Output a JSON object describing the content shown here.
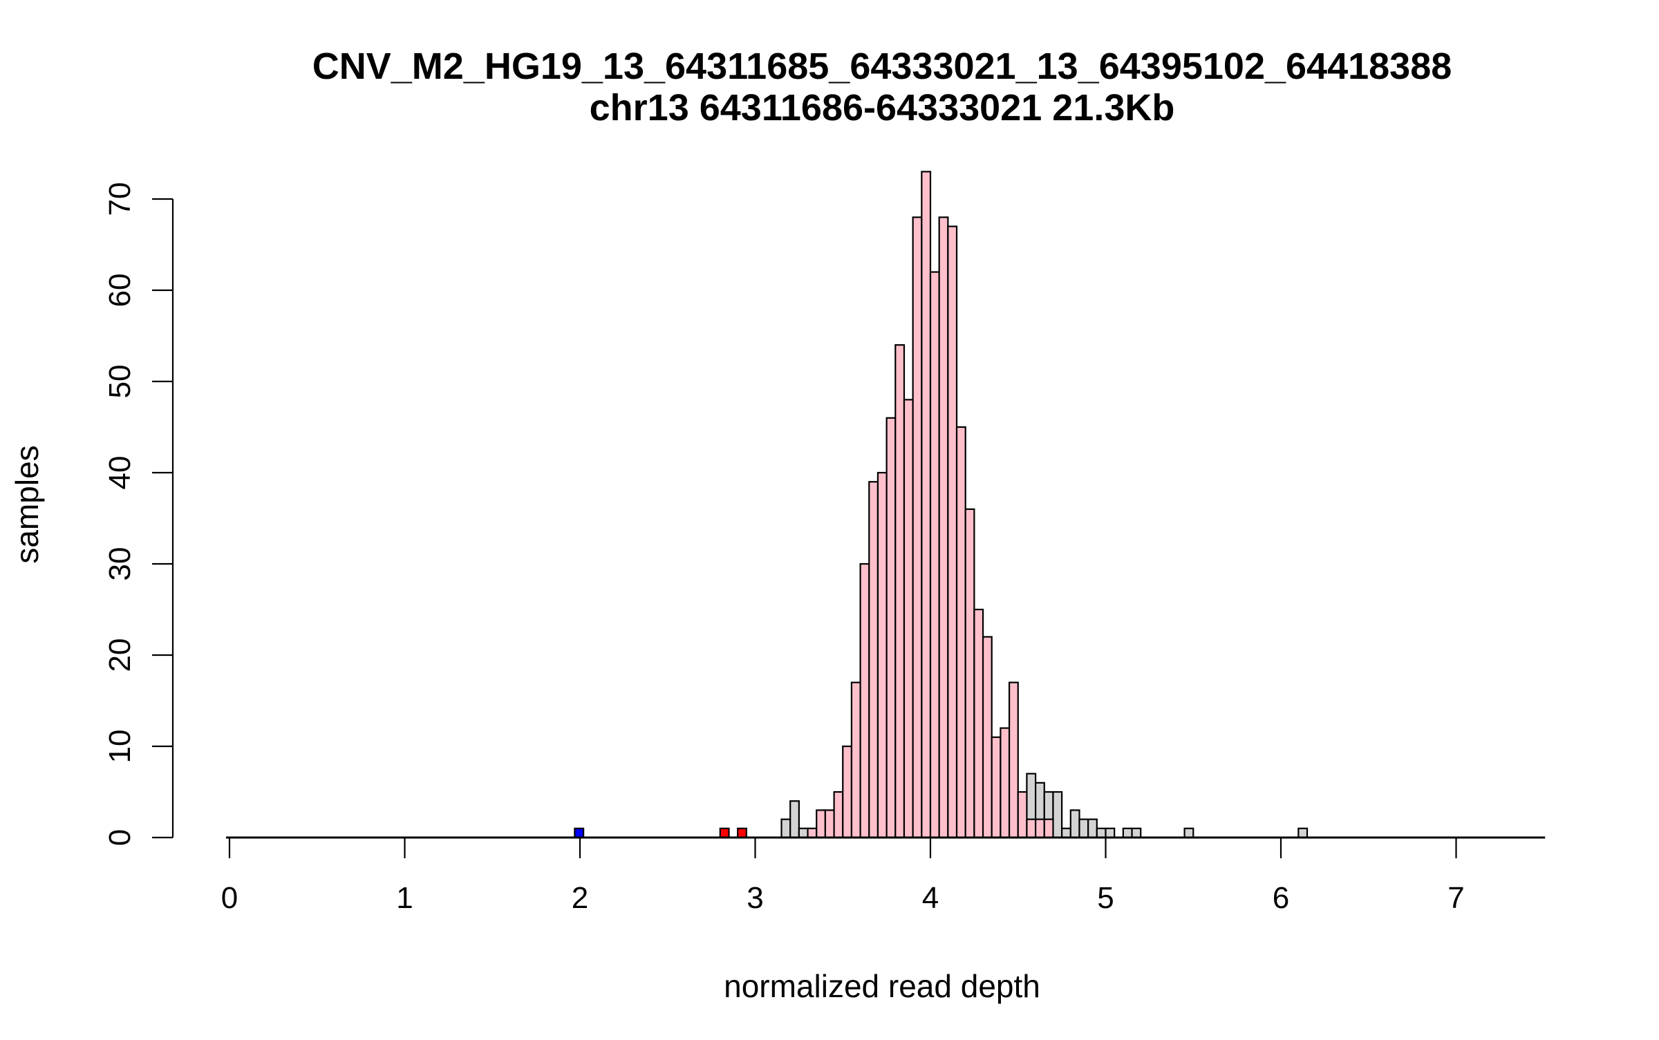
{
  "chart_data": {
    "type": "bar",
    "title": "CNV_M2_HG19_13_64311685_64333021_13_64395102_64418388",
    "subtitle": "chr13 64311686-64333021 21.3Kb",
    "xlabel": "normalized read depth",
    "ylabel": "samples",
    "xlim": [
      0,
      7.5
    ],
    "ylim": [
      0,
      70
    ],
    "xticks": [
      "0",
      "1",
      "2",
      "3",
      "4",
      "5",
      "6",
      "7"
    ],
    "yticks": [
      "0",
      "10",
      "20",
      "30",
      "40",
      "50",
      "60",
      "70"
    ],
    "bin_width": 0.05,
    "grid": false,
    "legend": false,
    "colors": {
      "all_samples": "#d3d3d3",
      "called_samples": "#ffc0cb",
      "deletion": "#ff0000",
      "low": "#0000ff",
      "outline": "#000000"
    },
    "series": [
      {
        "fill": "all_samples",
        "bins": [
          {
            "x0": 3.15,
            "value": 2
          },
          {
            "x0": 3.2,
            "value": 4
          },
          {
            "x0": 3.25,
            "value": 1
          },
          {
            "x0": 4.55,
            "value": 7
          },
          {
            "x0": 4.6,
            "value": 6
          },
          {
            "x0": 4.65,
            "value": 5
          },
          {
            "x0": 4.7,
            "value": 5
          },
          {
            "x0": 4.75,
            "value": 1
          },
          {
            "x0": 4.8,
            "value": 3
          },
          {
            "x0": 4.85,
            "value": 2
          },
          {
            "x0": 4.9,
            "value": 2
          },
          {
            "x0": 4.95,
            "value": 1
          },
          {
            "x0": 5.0,
            "value": 1
          },
          {
            "x0": 5.1,
            "value": 1
          },
          {
            "x0": 5.15,
            "value": 1
          },
          {
            "x0": 5.45,
            "value": 1
          },
          {
            "x0": 6.1,
            "value": 1
          }
        ]
      },
      {
        "fill": "called_samples",
        "bins": [
          {
            "x0": 3.3,
            "value": 1
          },
          {
            "x0": 3.35,
            "value": 3
          },
          {
            "x0": 3.4,
            "value": 3
          },
          {
            "x0": 3.45,
            "value": 5
          },
          {
            "x0": 3.5,
            "value": 10
          },
          {
            "x0": 3.55,
            "value": 17
          },
          {
            "x0": 3.6,
            "value": 30
          },
          {
            "x0": 3.65,
            "value": 39
          },
          {
            "x0": 3.7,
            "value": 40
          },
          {
            "x0": 3.75,
            "value": 46
          },
          {
            "x0": 3.8,
            "value": 54
          },
          {
            "x0": 3.85,
            "value": 48
          },
          {
            "x0": 3.9,
            "value": 68
          },
          {
            "x0": 3.95,
            "value": 73
          },
          {
            "x0": 4.0,
            "value": 62
          },
          {
            "x0": 4.05,
            "value": 68
          },
          {
            "x0": 4.1,
            "value": 67
          },
          {
            "x0": 4.15,
            "value": 45
          },
          {
            "x0": 4.2,
            "value": 36
          },
          {
            "x0": 4.25,
            "value": 25
          },
          {
            "x0": 4.3,
            "value": 22
          },
          {
            "x0": 4.35,
            "value": 11
          },
          {
            "x0": 4.4,
            "value": 12
          },
          {
            "x0": 4.45,
            "value": 17
          },
          {
            "x0": 4.5,
            "value": 5
          },
          {
            "x0": 4.55,
            "value": 2
          },
          {
            "x0": 4.6,
            "value": 2
          },
          {
            "x0": 4.65,
            "value": 2
          },
          {
            "x0": 4.7,
            "value": 0
          }
        ]
      },
      {
        "fill": "deletion",
        "bins": [
          {
            "x0": 2.8,
            "value": 1
          },
          {
            "x0": 2.9,
            "value": 1
          }
        ]
      },
      {
        "fill": "low",
        "bins": [
          {
            "x0": 1.97,
            "value": 1
          }
        ]
      }
    ]
  }
}
